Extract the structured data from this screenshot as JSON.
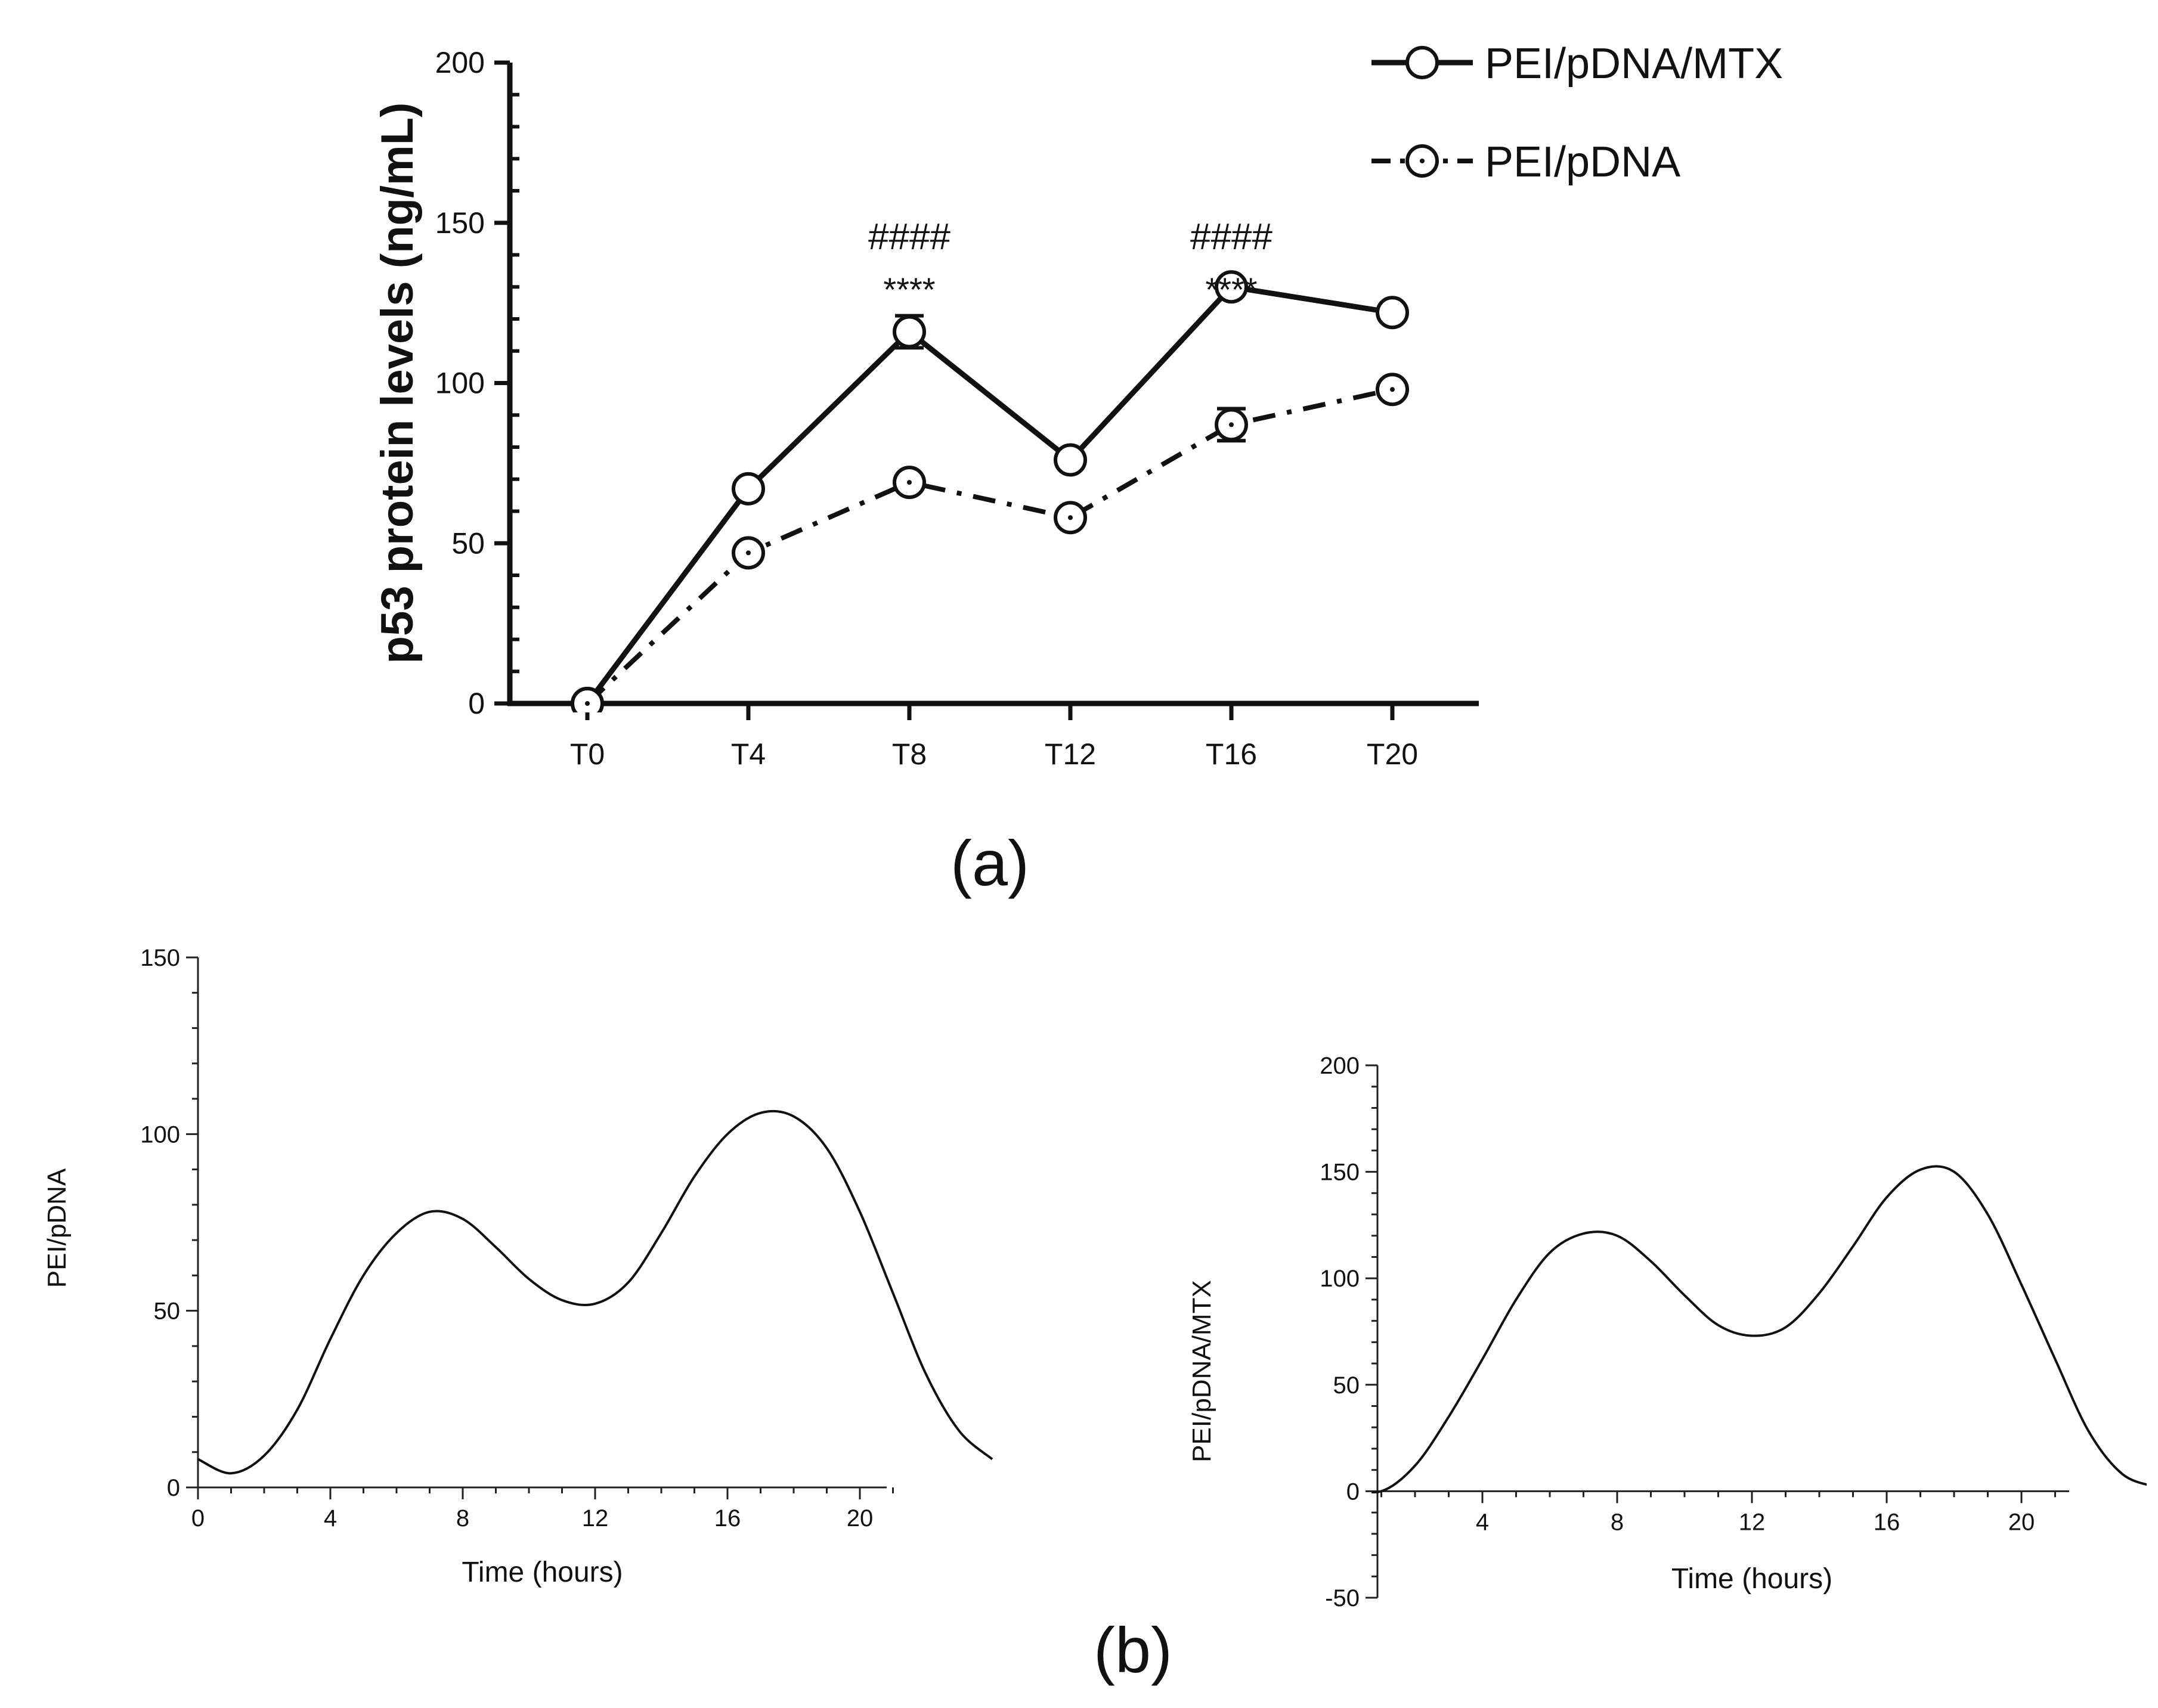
{
  "panel_labels": {
    "a": "(a)",
    "b": "(b)"
  },
  "chart_data": [
    {
      "id": "a",
      "type": "line",
      "ylabel": "p53 protein levels (ng/mL)",
      "categories": [
        "T0",
        "T4",
        "T8",
        "T12",
        "T16",
        "T20"
      ],
      "ylim": [
        0,
        200
      ],
      "yticks": [
        0,
        50,
        100,
        150,
        200
      ],
      "legend_position": "top-right",
      "series": [
        {
          "name": "PEI/pDNA/MTX",
          "style": "solid",
          "values": [
            0,
            67,
            116,
            76,
            130,
            122
          ],
          "err": [
            0,
            2,
            5,
            2,
            2,
            2
          ]
        },
        {
          "name": "PEI/pDNA",
          "style": "dashdot",
          "values": [
            0,
            47,
            69,
            58,
            87,
            98
          ],
          "err": [
            0,
            2,
            2,
            2,
            5,
            2
          ]
        }
      ],
      "annotations": [
        {
          "x": "T8",
          "top": "####",
          "bottom": "****"
        },
        {
          "x": "T16",
          "top": "####",
          "bottom": "****"
        }
      ]
    },
    {
      "id": "b1",
      "type": "line",
      "xlabel": "Time (hours)",
      "ylabel": "PEI/pDNA",
      "xlim": [
        0,
        24
      ],
      "ylim": [
        0,
        150
      ],
      "xticks": [
        0,
        4,
        8,
        12,
        16,
        20
      ],
      "yticks": [
        0,
        50,
        100,
        150
      ],
      "x": [
        0,
        1,
        2,
        3,
        4,
        5,
        6,
        7,
        8,
        9,
        10,
        11,
        12,
        13,
        14,
        15,
        16,
        17,
        18,
        19,
        20,
        21,
        22,
        23,
        24
      ],
      "values": [
        8,
        4,
        9,
        22,
        42,
        60,
        72,
        78,
        76,
        68,
        59,
        53,
        52,
        58,
        72,
        88,
        100,
        106,
        105,
        96,
        78,
        55,
        32,
        16,
        8
      ]
    },
    {
      "id": "b2",
      "type": "line",
      "xlabel": "Time (hours)",
      "ylabel": "PEI/pDNA/MTX",
      "xlim": [
        0,
        24
      ],
      "ylim": [
        -50,
        200
      ],
      "xticks": [
        4,
        8,
        12,
        16,
        20
      ],
      "yticks": [
        -50,
        0,
        50,
        100,
        150,
        200
      ],
      "x": [
        0,
        1,
        2,
        3,
        4,
        5,
        6,
        7,
        8,
        9,
        10,
        11,
        12,
        13,
        14,
        15,
        16,
        17,
        18,
        19,
        20,
        21,
        22,
        23,
        24
      ],
      "values": [
        2,
        0,
        12,
        35,
        62,
        90,
        112,
        121,
        120,
        108,
        92,
        78,
        73,
        77,
        93,
        115,
        138,
        151,
        150,
        130,
        97,
        62,
        28,
        8,
        2
      ]
    }
  ]
}
